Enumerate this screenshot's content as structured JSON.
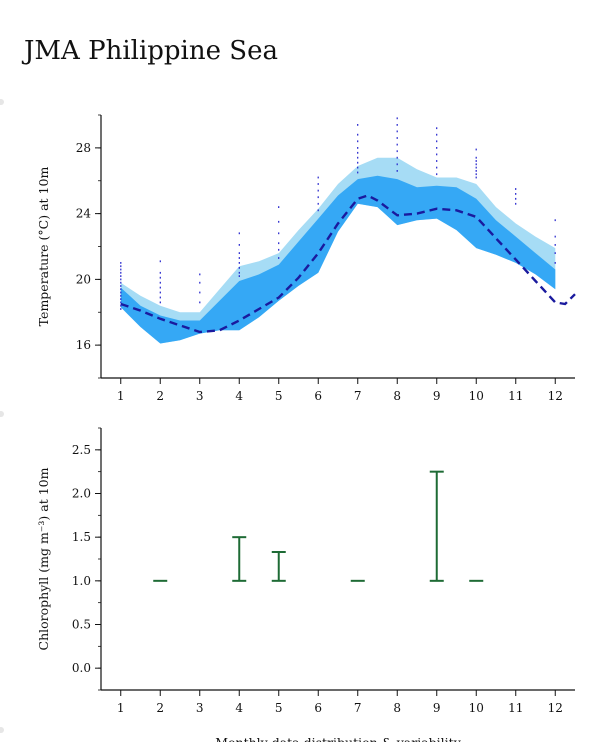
{
  "title": "JMA Philippine Sea",
  "chart_data": [
    {
      "type": "area",
      "ylabel": "Temperature (°C) at 10m",
      "xlabel": "",
      "xlim": [
        0.5,
        12.5
      ],
      "ylim": [
        14,
        30
      ],
      "xticks": [
        1,
        2,
        3,
        4,
        5,
        6,
        7,
        8,
        9,
        10,
        11,
        12
      ],
      "yticks": [
        16,
        20,
        24,
        28
      ],
      "x": [
        1,
        1.5,
        2,
        2.5,
        3,
        3.5,
        4,
        4.5,
        5,
        5.5,
        6,
        6.5,
        7,
        7.5,
        8,
        8.5,
        9,
        9.5,
        10,
        10.5,
        11,
        11.5,
        12
      ],
      "series": [
        {
          "role": "light-band",
          "color": "#a6dcf5",
          "upper": [
            19.8,
            19.0,
            18.4,
            18.0,
            18.0,
            19.4,
            20.8,
            21.1,
            21.6,
            23.0,
            24.3,
            25.8,
            26.9,
            27.4,
            27.4,
            26.7,
            26.2,
            26.2,
            25.8,
            24.4,
            23.4,
            22.6,
            21.9
          ],
          "lower": [
            18.3,
            17.1,
            16.1,
            16.3,
            16.7,
            16.9,
            16.9,
            17.7,
            18.7,
            19.6,
            20.4,
            22.9,
            24.6,
            24.4,
            23.3,
            23.6,
            23.7,
            23.0,
            21.9,
            21.5,
            21.0,
            20.3,
            19.4
          ]
        },
        {
          "role": "dark-band",
          "color": "#35a8f5",
          "upper": [
            19.5,
            18.4,
            17.8,
            17.5,
            17.5,
            18.7,
            19.9,
            20.3,
            20.9,
            22.3,
            23.7,
            25.1,
            26.1,
            26.3,
            26.1,
            25.6,
            25.7,
            25.6,
            24.9,
            23.6,
            22.6,
            21.6,
            20.6
          ],
          "lower": [
            18.3,
            17.1,
            16.1,
            16.3,
            16.7,
            16.9,
            16.9,
            17.7,
            18.7,
            19.6,
            20.4,
            22.9,
            24.6,
            24.4,
            23.3,
            23.6,
            23.7,
            23.0,
            21.9,
            21.5,
            21.0,
            20.3,
            19.4
          ]
        },
        {
          "role": "mean-line",
          "color": "#1a1a9e",
          "line_x": [
            1,
            1.5,
            2,
            2.5,
            3,
            3.5,
            4,
            4.5,
            5,
            5.5,
            6,
            6.5,
            7,
            7.25,
            7.5,
            8,
            8.5,
            9,
            9.5,
            10,
            10.5,
            11,
            11.5,
            12,
            12.25,
            12.5
          ],
          "line_y": [
            18.5,
            18.1,
            17.6,
            17.2,
            16.8,
            16.9,
            17.5,
            18.2,
            18.9,
            20.1,
            21.6,
            23.4,
            24.9,
            25.1,
            24.8,
            23.9,
            24.0,
            24.3,
            24.2,
            23.8,
            22.5,
            21.2,
            19.9,
            18.6,
            18.5,
            19.1
          ]
        }
      ],
      "observations": [
        {
          "x": 1,
          "y": [
            18.2,
            18.4,
            18.6,
            18.8,
            19.0,
            19.2,
            19.4,
            19.6,
            19.8,
            20.0,
            20.2,
            20.4,
            20.6,
            20.8,
            21.0
          ]
        },
        {
          "x": 2,
          "y": [
            18.6,
            18.9,
            19.2,
            19.5,
            19.8,
            20.1,
            20.4,
            21.1
          ]
        },
        {
          "x": 3,
          "y": [
            18.6,
            19.2,
            19.8,
            20.3
          ]
        },
        {
          "x": 4,
          "y": [
            20.2,
            20.4,
            20.7,
            21.0,
            21.3,
            21.6,
            22.1,
            22.8
          ]
        },
        {
          "x": 5,
          "y": [
            21.3,
            21.8,
            22.2,
            22.8,
            23.5,
            24.4
          ]
        },
        {
          "x": 6,
          "y": [
            24.2,
            24.6,
            25.0,
            25.4,
            25.8,
            26.2
          ]
        },
        {
          "x": 7,
          "y": [
            26.5,
            26.8,
            27.1,
            27.4,
            27.7,
            28.0,
            28.4,
            28.8,
            29.4
          ]
        },
        {
          "x": 8,
          "y": [
            26.6,
            27.0,
            27.4,
            27.8,
            28.2,
            28.6,
            29.0,
            29.4,
            29.8
          ]
        },
        {
          "x": 9,
          "y": [
            26.4,
            26.8,
            27.2,
            27.6,
            28.0,
            28.4,
            28.8,
            29.2
          ]
        },
        {
          "x": 10,
          "y": [
            26.2,
            26.4,
            26.6,
            26.8,
            27.0,
            27.2,
            27.4,
            27.9
          ]
        },
        {
          "x": 11,
          "y": [
            24.6,
            24.9,
            25.2,
            25.5
          ]
        },
        {
          "x": 12,
          "y": [
            21.0,
            21.6,
            22.1,
            22.6,
            23.6
          ]
        }
      ],
      "observation_color": "#2222cc"
    },
    {
      "type": "errorbar",
      "ylabel": "Chlorophyll (mg m⁻³) at 10m",
      "xlabel": "Monthly data distribution & variability",
      "xlim": [
        0.5,
        12.5
      ],
      "ylim": [
        -0.25,
        2.75
      ],
      "xticks": [
        1,
        2,
        3,
        4,
        5,
        6,
        7,
        8,
        9,
        10,
        11,
        12
      ],
      "yticks": [
        0.0,
        0.5,
        1.0,
        1.5,
        2.0,
        2.5
      ],
      "color": "#1e6b35",
      "bars": [
        {
          "x": 2,
          "low": 1.0,
          "high": 1.0
        },
        {
          "x": 4,
          "low": 1.0,
          "high": 1.5
        },
        {
          "x": 5,
          "low": 1.0,
          "high": 1.33
        },
        {
          "x": 7,
          "low": 1.0,
          "high": 1.0
        },
        {
          "x": 9,
          "low": 1.0,
          "high": 2.25
        },
        {
          "x": 10,
          "low": 1.0,
          "high": 1.0
        }
      ]
    }
  ],
  "dot_colors": {
    "margin": "#e6e6e6"
  }
}
